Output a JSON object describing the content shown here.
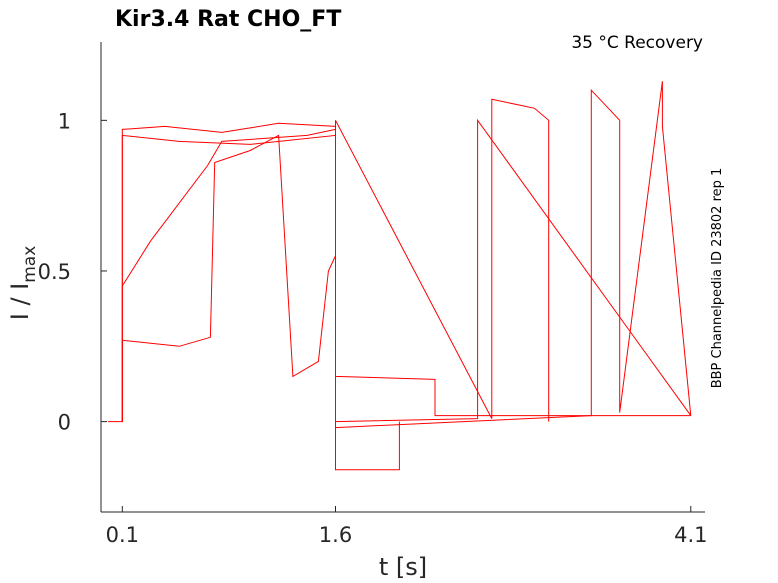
{
  "chart_data": {
    "type": "line",
    "title": "Kir3.4  Rat  CHO_FT",
    "annotation": "35 °C  Recovery",
    "side_label": "BBP Channelpedia ID 23802 rep 1",
    "xlabel": "t [s]",
    "ylabel_main": "I / I",
    "ylabel_sub": "max",
    "xlim": [
      -0.05,
      4.2
    ],
    "ylim": [
      -0.3,
      1.26
    ],
    "x_ticks": [
      0.1,
      1.6,
      4.1
    ],
    "x_tick_labels": [
      "0.1",
      "1.6",
      "4.1"
    ],
    "y_ticks": [
      0,
      0.5,
      1
    ],
    "y_tick_labels": [
      "0",
      "0.5",
      "1"
    ],
    "grid": false,
    "color": "#ff0000",
    "series": [
      {
        "x": [
          0.0,
          0.1,
          0.1,
          0.4,
          0.8,
          1.2,
          1.6,
          1.6,
          2.05,
          2.05
        ],
        "y": [
          0.0,
          0.0,
          0.97,
          0.98,
          0.96,
          0.99,
          0.98,
          -0.16,
          -0.16,
          0.0
        ]
      },
      {
        "x": [
          0.1,
          0.1,
          0.5,
          1.0,
          1.6,
          1.6,
          2.3,
          2.3,
          4.1
        ],
        "y": [
          0.0,
          0.95,
          0.93,
          0.92,
          0.95,
          0.15,
          0.14,
          0.02,
          0.02
        ]
      },
      {
        "x": [
          0.1,
          0.1,
          0.3,
          0.7,
          0.8,
          1.4,
          1.6,
          1.6,
          2.6,
          2.6,
          4.1
        ],
        "y": [
          0.0,
          0.45,
          0.6,
          0.85,
          0.93,
          0.95,
          0.97,
          0.0,
          0.01,
          1.0,
          0.02
        ]
      },
      {
        "x": [
          0.1,
          0.1,
          0.5,
          0.72,
          0.75,
          1.0,
          1.2,
          1.3,
          1.48,
          1.55,
          1.6
        ],
        "y": [
          0.0,
          0.27,
          0.25,
          0.28,
          0.86,
          0.9,
          0.95,
          0.15,
          0.2,
          0.5,
          0.55
        ]
      },
      {
        "x": [
          1.6,
          1.6,
          2.7,
          2.7,
          2.9,
          3.0,
          3.1,
          3.1
        ],
        "y": [
          0.0,
          1.0,
          0.01,
          1.07,
          1.05,
          1.04,
          1.0,
          0.0
        ]
      },
      {
        "x": [
          1.6,
          1.6,
          3.4,
          3.4,
          3.6,
          3.6,
          3.9,
          3.9,
          4.1
        ],
        "y": [
          -0.02,
          -0.02,
          0.02,
          1.1,
          1.0,
          0.03,
          1.13,
          0.98,
          0.02
        ]
      }
    ]
  }
}
